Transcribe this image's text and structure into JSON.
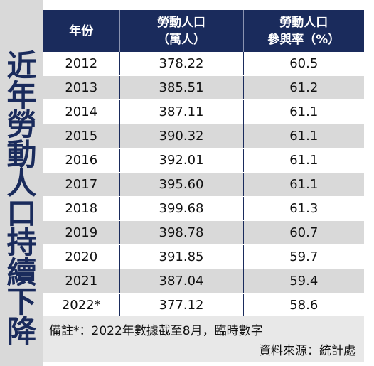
{
  "side_title": "近年勞動人口持續下降",
  "table": {
    "headers": [
      {
        "line1": "年份",
        "line2": ""
      },
      {
        "line1": "勞動人口",
        "line2": "（萬人）"
      },
      {
        "line1": "勞動人口",
        "line2": "參與率（%）"
      }
    ],
    "rows": [
      {
        "year": "2012",
        "population": "378.22",
        "rate": "60.5"
      },
      {
        "year": "2013",
        "population": "385.51",
        "rate": "61.2"
      },
      {
        "year": "2014",
        "population": "387.11",
        "rate": "61.1"
      },
      {
        "year": "2015",
        "population": "390.32",
        "rate": "61.1"
      },
      {
        "year": "2016",
        "population": "392.01",
        "rate": "61.1"
      },
      {
        "year": "2017",
        "population": "395.60",
        "rate": "61.1"
      },
      {
        "year": "2018",
        "population": "399.68",
        "rate": "61.3"
      },
      {
        "year": "2019",
        "population": "398.78",
        "rate": "60.7"
      },
      {
        "year": "2020",
        "population": "391.85",
        "rate": "59.7"
      },
      {
        "year": "2021",
        "population": "387.04",
        "rate": "59.4"
      },
      {
        "year": "2022*",
        "population": "377.12",
        "rate": "58.6"
      }
    ]
  },
  "notes": {
    "remark": "備註*：2022年數據截至8月，臨時數字",
    "source": "資料來源：統計處"
  },
  "colors": {
    "header_bg": "#1a2b5c",
    "title_text": "#1a2b5c",
    "stripe": "#d9d9d9",
    "side_bg": "#d9d9d9"
  }
}
